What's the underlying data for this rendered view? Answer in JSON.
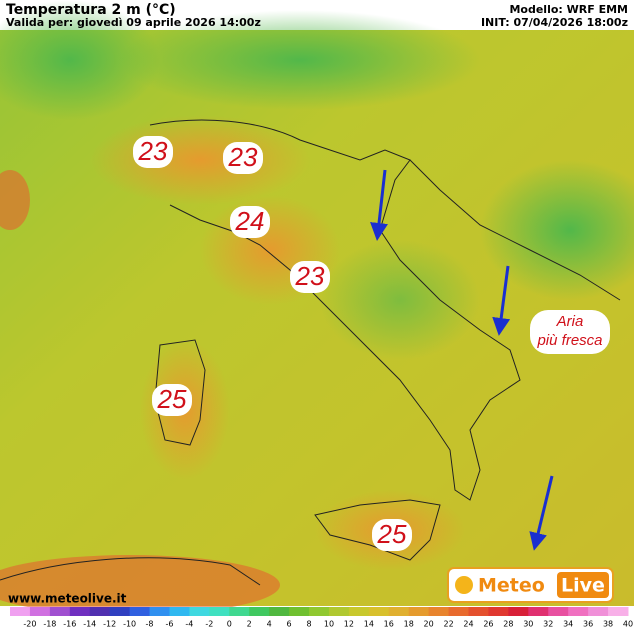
{
  "header": {
    "title": "Temperatura 2 m (°C)",
    "valid": "Valida per: giovedì 09 aprile 2026 14:00z",
    "model": "Modello: WRF EMM",
    "init": "INIT: 07/04/2026 18:00z"
  },
  "map": {
    "callouts": [
      23,
      23,
      24,
      23,
      25,
      25
    ],
    "note": [
      "Aria",
      "più fresca"
    ],
    "website": "www.meteolive.it",
    "logo": [
      "Meteo",
      "Live"
    ]
  },
  "colorbar": {
    "ticks": [
      -20,
      -18,
      -16,
      -14,
      -12,
      -10,
      -8,
      -6,
      -4,
      -2,
      0,
      2,
      4,
      6,
      8,
      10,
      12,
      14,
      16,
      18,
      20,
      22,
      24,
      26,
      28,
      30,
      32,
      34,
      36,
      38,
      40
    ]
  }
}
